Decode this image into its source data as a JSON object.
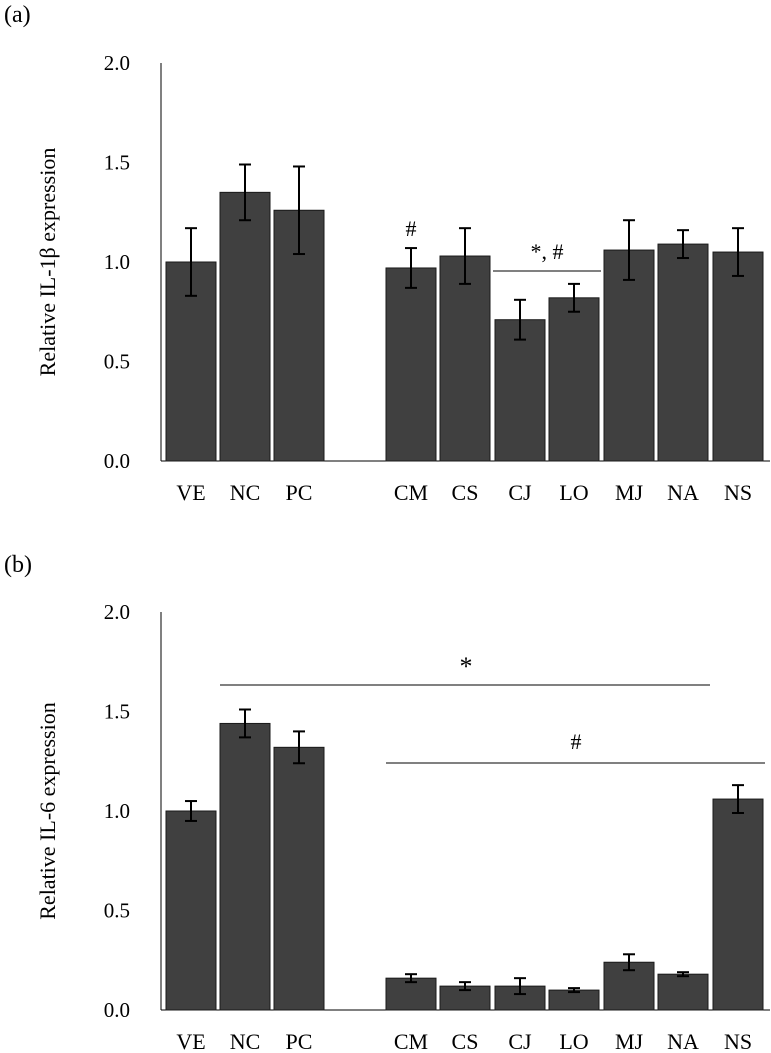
{
  "chart_data": [
    {
      "panel_label": "(a)",
      "type": "bar",
      "ylabel": "Relative IL-1β expression",
      "xlabel": "",
      "ylim": [
        0,
        2.0
      ],
      "yticks": [
        "0.0",
        "0.5",
        "1.0",
        "1.5",
        "2.0"
      ],
      "categories": [
        "VE",
        "NC",
        "PC",
        "CM",
        "CS",
        "CJ",
        "LO",
        "MJ",
        "NA",
        "NS"
      ],
      "values": [
        1.0,
        1.35,
        1.26,
        0.97,
        1.03,
        0.71,
        0.82,
        1.06,
        1.09,
        1.05
      ],
      "errors": [
        0.17,
        0.14,
        0.22,
        0.1,
        0.14,
        0.1,
        0.07,
        0.15,
        0.07,
        0.12
      ],
      "gap_after_index": 2,
      "bar_color": "#404040",
      "annotations": [
        {
          "text": "#",
          "over": [
            "CM"
          ]
        },
        {
          "text": "*, #",
          "over": [
            "CJ",
            "LO"
          ],
          "line": true
        }
      ]
    },
    {
      "panel_label": "(b)",
      "type": "bar",
      "ylabel": "Relative IL-6 expression",
      "xlabel": "",
      "ylim": [
        0,
        2.0
      ],
      "yticks": [
        "0.0",
        "0.5",
        "1.0",
        "1.5",
        "2.0"
      ],
      "categories": [
        "VE",
        "NC",
        "PC",
        "CM",
        "CS",
        "CJ",
        "LO",
        "MJ",
        "NA",
        "NS"
      ],
      "values": [
        1.0,
        1.44,
        1.32,
        0.16,
        0.12,
        0.12,
        0.1,
        0.24,
        0.18,
        1.06
      ],
      "errors": [
        0.05,
        0.07,
        0.08,
        0.02,
        0.02,
        0.04,
        0.01,
        0.04,
        0.01,
        0.07
      ],
      "gap_after_index": 2,
      "bar_color": "#404040",
      "annotations": [
        {
          "text": "*",
          "over": [
            "NC",
            "NA"
          ],
          "line": true
        },
        {
          "text": "#",
          "over": [
            "CM",
            "NS"
          ],
          "line": true
        }
      ]
    }
  ]
}
